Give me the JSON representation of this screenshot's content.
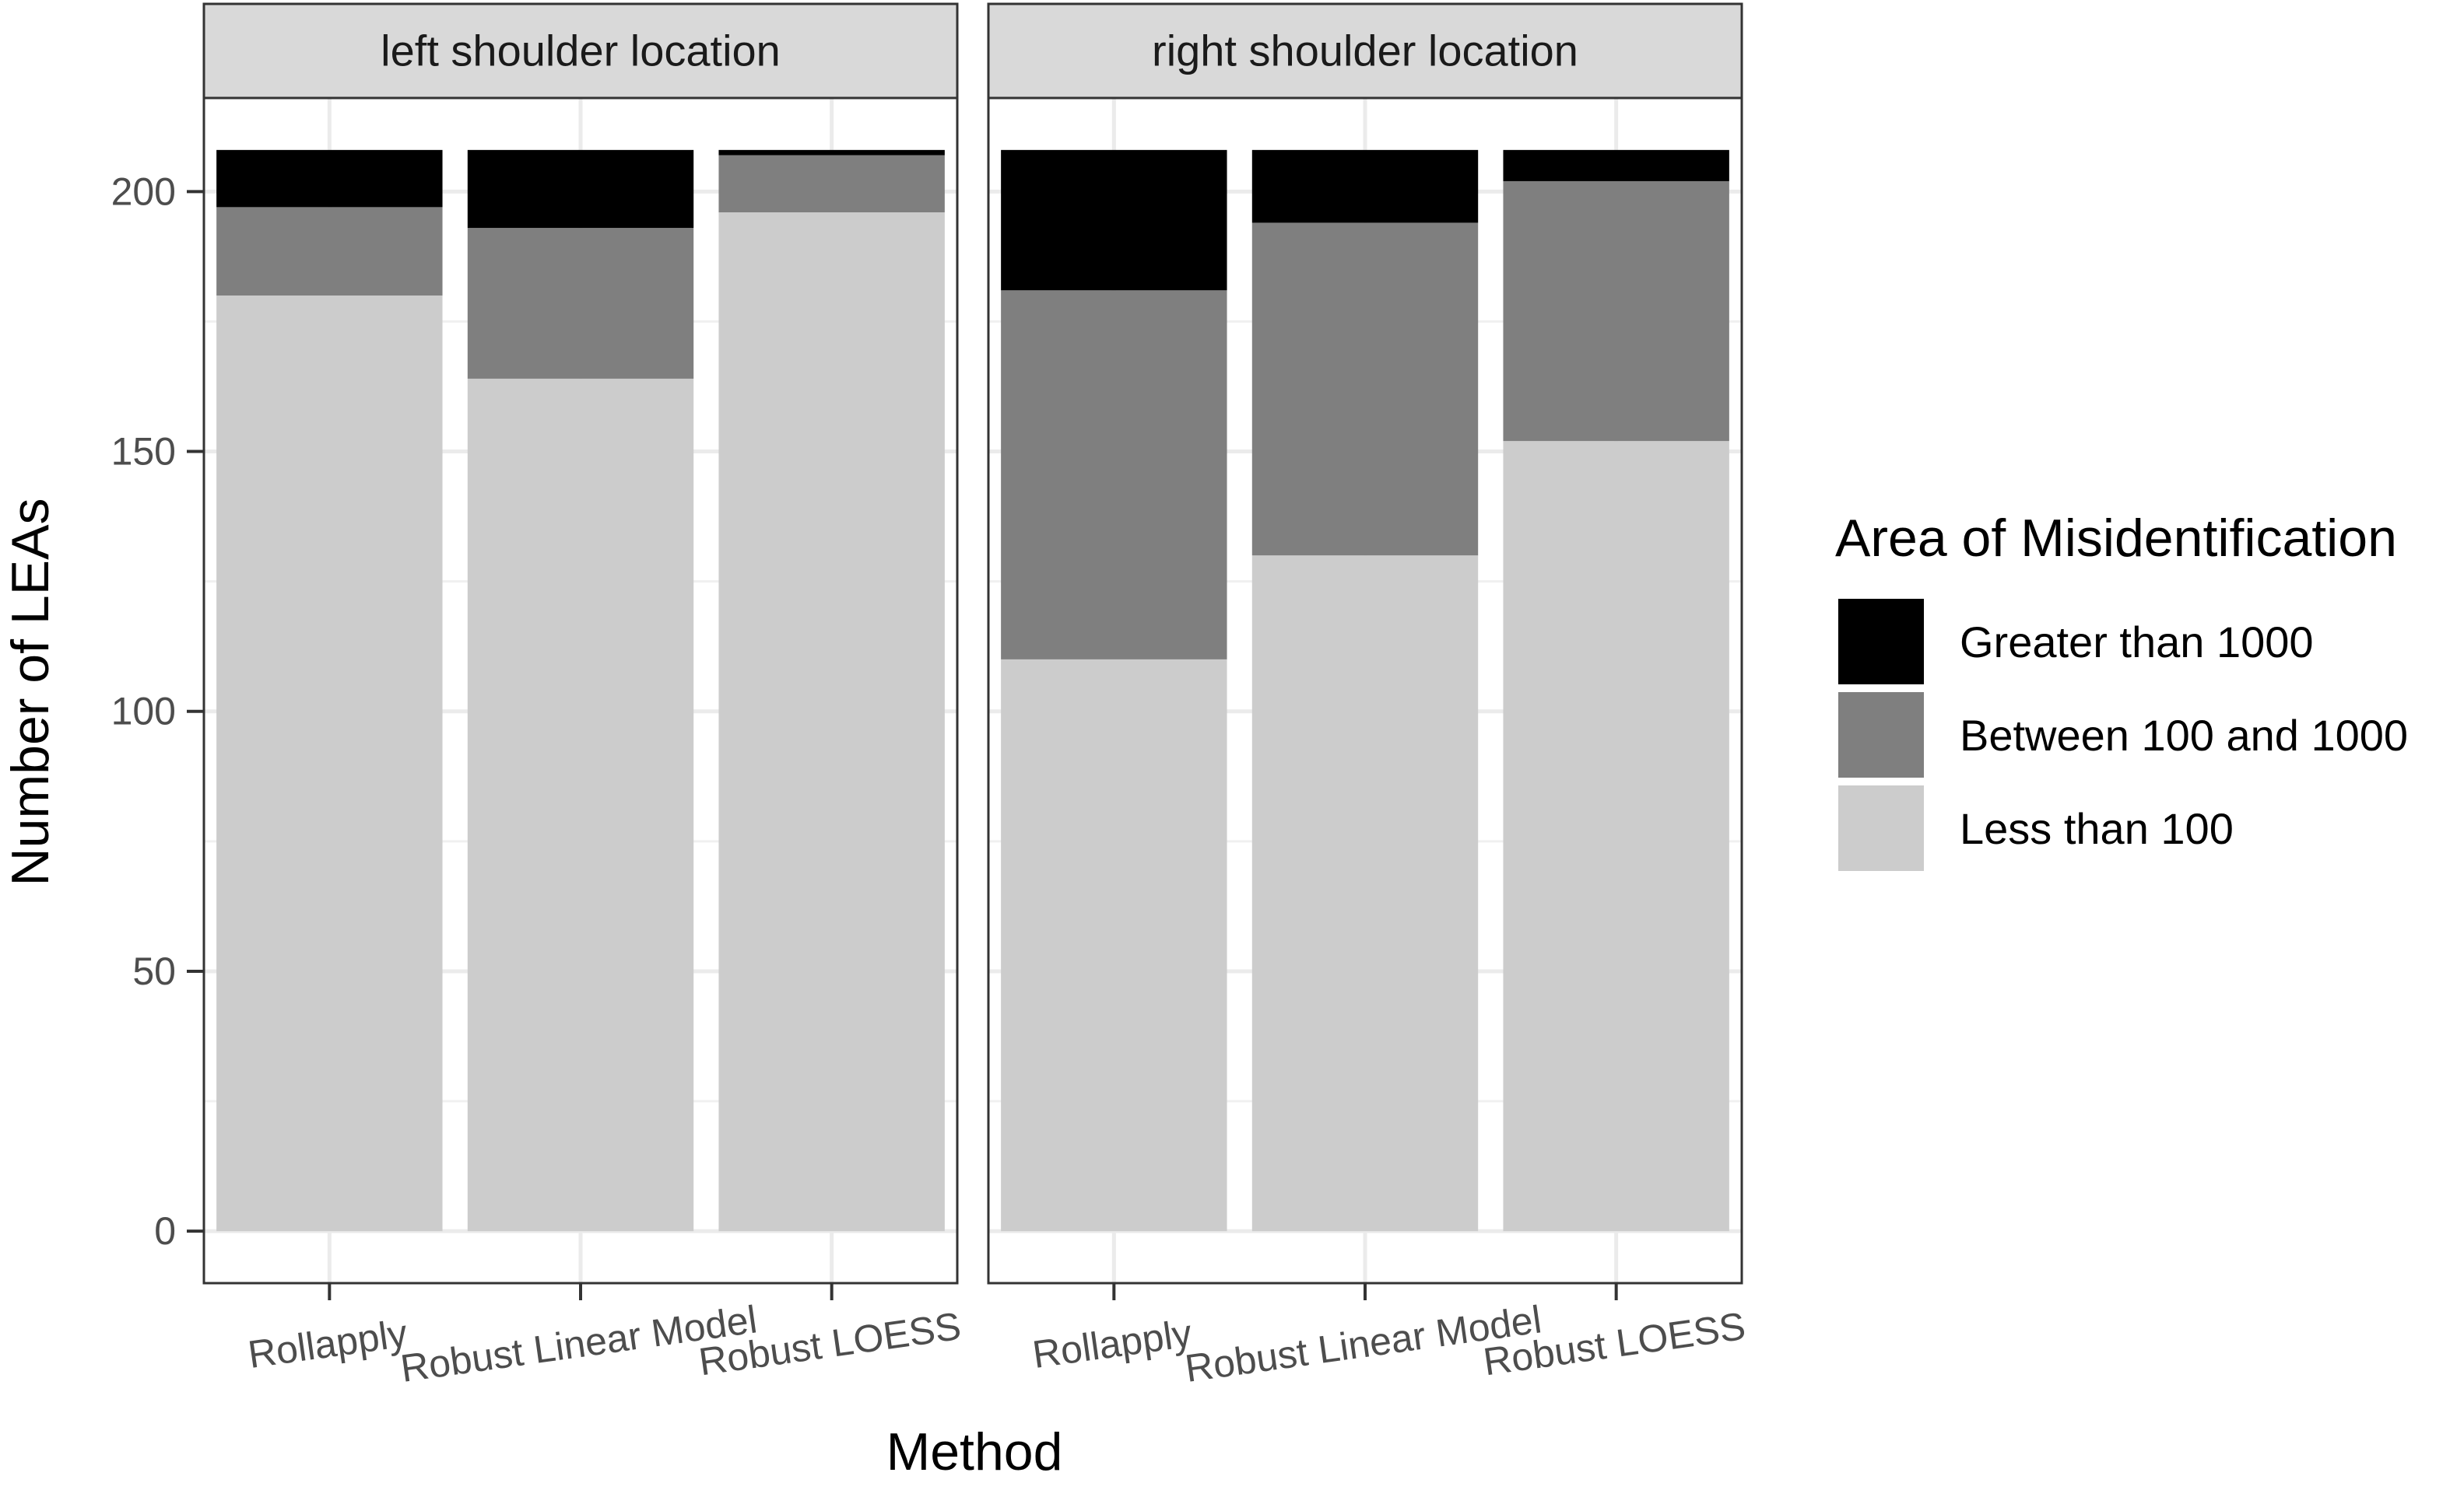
{
  "chart_data": {
    "type": "bar",
    "stacked": true,
    "facets": [
      {
        "label": "left shoulder location",
        "categories": [
          "Rollapply",
          "Robust Linear Model",
          "Robust LOESS"
        ],
        "series": [
          {
            "name": "Less than 100",
            "values": [
              180,
              164,
              196
            ]
          },
          {
            "name": "Between 100 and 1000",
            "values": [
              17,
              29,
              11
            ]
          },
          {
            "name": "Greater than 1000",
            "values": [
              11,
              15,
              1
            ]
          }
        ]
      },
      {
        "label": "right shoulder location",
        "categories": [
          "Rollapply",
          "Robust Linear Model",
          "Robust LOESS"
        ],
        "series": [
          {
            "name": "Less than 100",
            "values": [
              110,
              130,
              152
            ]
          },
          {
            "name": "Between 100 and 1000",
            "values": [
              71,
              64,
              50
            ]
          },
          {
            "name": "Greater than 1000",
            "values": [
              27,
              14,
              6
            ]
          }
        ]
      }
    ],
    "xlabel": "Method",
    "ylabel": "Number of LEAs",
    "ylim": [
      -10,
      218
    ],
    "yticks": [
      0,
      50,
      100,
      150,
      200
    ],
    "grid": true,
    "legend": {
      "title": "Area of Misidentification",
      "placement": "right",
      "entries": [
        "Greater than 1000",
        "Between 100 and 1000",
        "Less than 100"
      ]
    },
    "colors": {
      "Greater than 1000": "#000000",
      "Between 100 and 1000": "#7f7f7f",
      "Less than 100": "#cccccc"
    }
  }
}
